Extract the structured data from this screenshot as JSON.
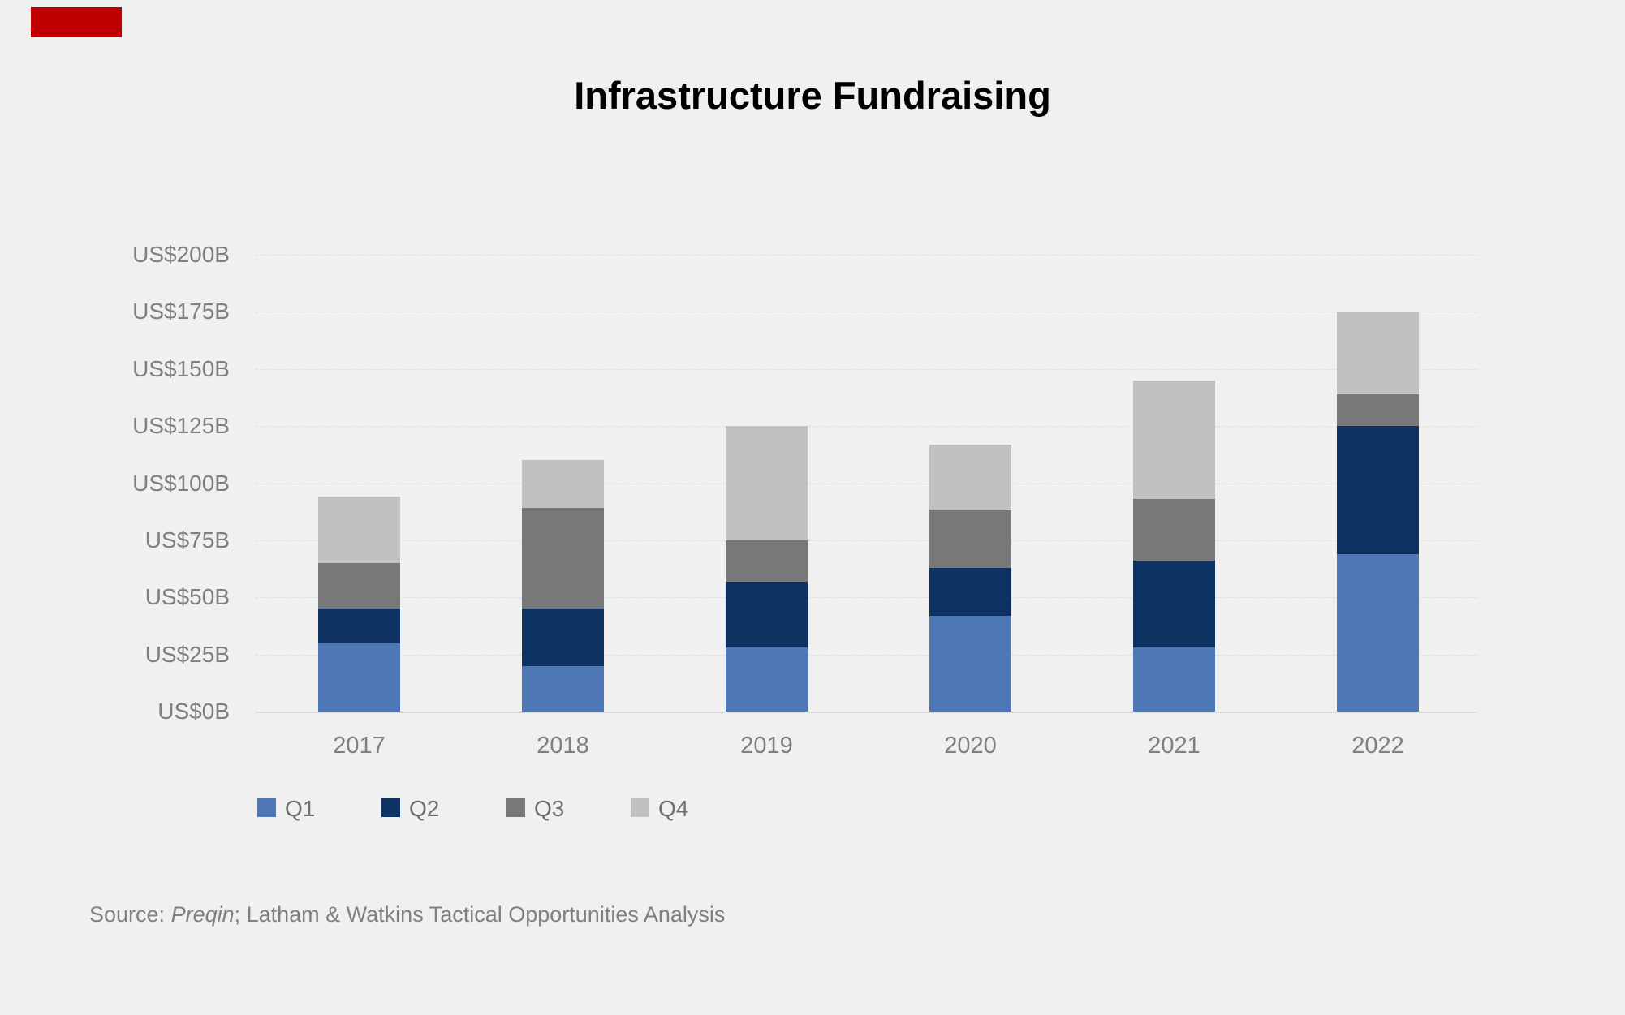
{
  "title": "Infrastructure Fundraising",
  "colors": {
    "background": "#f0f0f0",
    "badge": "#c00000",
    "grid": "#dcdcdc",
    "axis_text": "#7f7f7f",
    "legend_text": "#6f6f6f",
    "source_text": "#808080",
    "title_text": "#000000"
  },
  "source": {
    "prefix": "Source: ",
    "italic": "Preqin",
    "suffix": "; Latham & Watkins Tactical Opportunities Analysis"
  },
  "chart_data": {
    "type": "bar",
    "stacked": true,
    "title": "Infrastructure Fundraising",
    "categories": [
      "2017",
      "2018",
      "2019",
      "2020",
      "2021",
      "2022"
    ],
    "series": [
      {
        "name": "Q1",
        "color": "#4d78b5",
        "values": [
          30,
          20,
          28,
          42,
          28,
          69
        ]
      },
      {
        "name": "Q2",
        "color": "#0d3160",
        "values": [
          15,
          25,
          29,
          21,
          38,
          56
        ]
      },
      {
        "name": "Q3",
        "color": "#787878",
        "values": [
          20,
          44,
          18,
          25,
          27,
          14
        ]
      },
      {
        "name": "Q4",
        "color": "#c0c1c3",
        "values": [
          29,
          21,
          50,
          29,
          52,
          36
        ]
      }
    ],
    "totals": [
      94,
      110,
      125,
      117,
      145,
      175
    ],
    "y_ticks": [
      "US$0B",
      "US$25B",
      "US$50B",
      "US$75B",
      "US$100B",
      "US$125B",
      "US$150B",
      "US$175B",
      "US$200B"
    ],
    "y_tick_values": [
      0,
      25,
      50,
      75,
      100,
      125,
      150,
      175,
      200
    ],
    "ylim": [
      0,
      200
    ],
    "value_unit": "US$ billions",
    "grid": true,
    "legend_position": "bottom",
    "legend_labels": [
      "Q1",
      "Q2",
      "Q3",
      "Q4"
    ]
  }
}
